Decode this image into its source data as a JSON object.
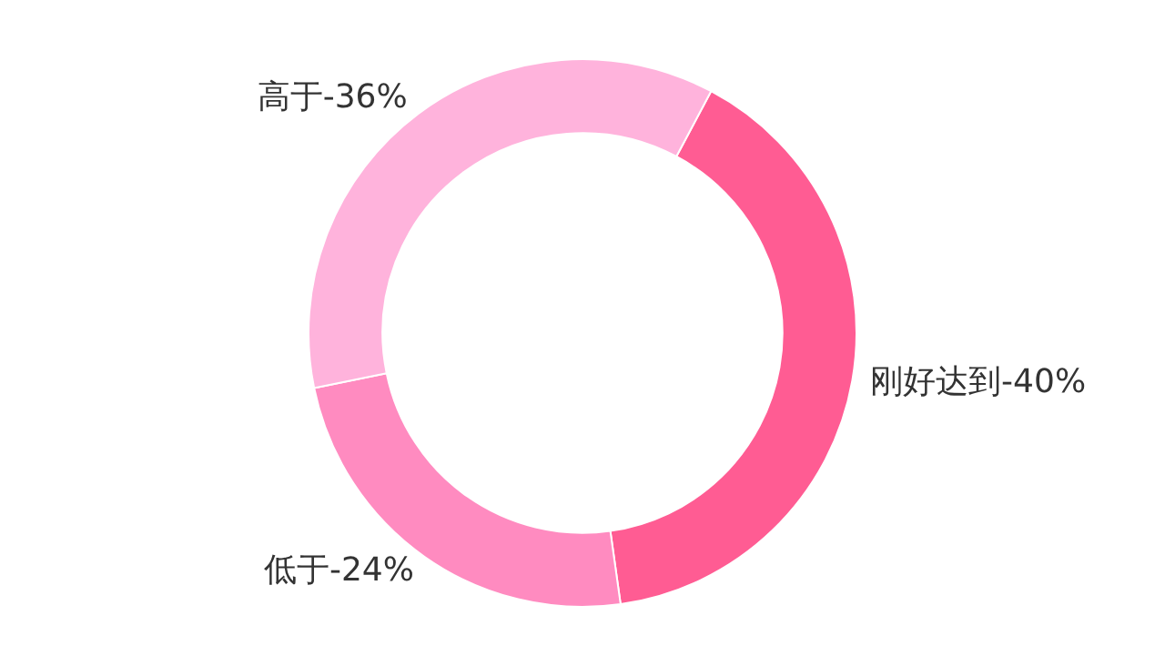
{
  "chart_data": {
    "type": "donut",
    "categories": [
      "刚好达到-40%",
      "低于-24%",
      "高于-36%"
    ],
    "values": [
      40,
      24,
      36
    ],
    "colors": [
      "#ff5c93",
      "#ff8bc0",
      "#ffb3dc"
    ],
    "legend": false
  }
}
